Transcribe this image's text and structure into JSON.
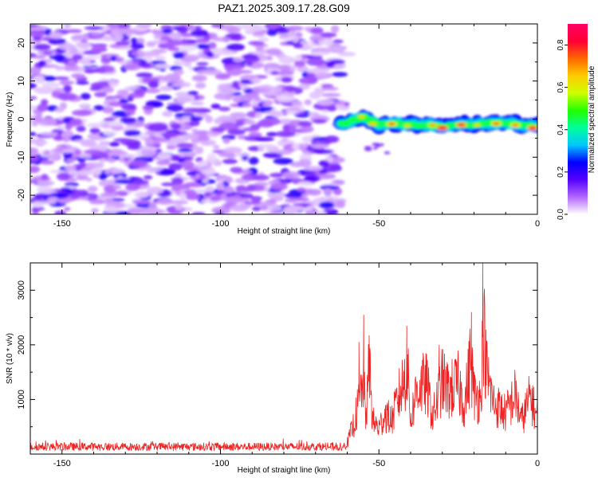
{
  "figure_title": "PAZ1.2025.309.17.28.G09",
  "chart_data": [
    {
      "type": "heatmap",
      "title": "PAZ1.2025.309.17.28.G09",
      "xlabel": "Height of straight line (km)",
      "ylabel": "Frequency (Hz)",
      "xlim": [
        -160,
        0
      ],
      "ylim": [
        -25,
        25
      ],
      "xticks": [
        -150,
        -100,
        -50,
        0
      ],
      "yticks": [
        -20,
        -10,
        0,
        10,
        20
      ],
      "colorbar": {
        "label": "Normalized spectral amplitude",
        "range": [
          0,
          0.9
        ],
        "ticks": [
          "0.0",
          "0.2",
          "0.4",
          "0.6",
          "0.8"
        ],
        "colormap": [
          "#ffffff",
          "#b366ff",
          "#5500ff",
          "#0000ff",
          "#00c8ff",
          "#00ff99",
          "#22ff00",
          "#ccff00",
          "#ffcc00",
          "#ff6600",
          "#ff0033",
          "#ff0066"
        ]
      },
      "noise_region_km": [
        -160,
        -62
      ],
      "signal_track": {
        "x": [
          -62,
          -55,
          -50,
          -45,
          -40,
          -35,
          -30,
          -25,
          -20,
          -15,
          -10,
          -5,
          0
        ],
        "freq_hz": [
          -1.5,
          0.5,
          -1.5,
          -1.0,
          -1.5,
          -1.5,
          -2.0,
          -1.5,
          -1.5,
          -1.0,
          -1.0,
          -1.5,
          -2.0
        ]
      }
    },
    {
      "type": "line",
      "xlabel": "Height of straight line (km)",
      "ylabel": "SNR (10 * v/v)",
      "xlim": [
        -160,
        0
      ],
      "ylim": [
        0,
        3500
      ],
      "xticks": [
        -150,
        -100,
        -50,
        0
      ],
      "yticks": [
        1000,
        2000,
        3000
      ],
      "line_color": "#ee2222",
      "envelope": {
        "x": [
          -160,
          -62,
          -60,
          -58,
          -56,
          -55,
          -54,
          -53,
          -52,
          -50,
          -48,
          -46,
          -44,
          -42,
          -41,
          -40,
          -38,
          -35,
          -33,
          -30,
          -28,
          -25,
          -23,
          -21,
          -20,
          -18,
          -17,
          -16,
          -14,
          -10,
          -7,
          -5,
          -2,
          -1,
          0
        ],
        "y": [
          150,
          150,
          300,
          800,
          1500,
          2000,
          1000,
          2550,
          900,
          700,
          1100,
          900,
          1500,
          2000,
          2350,
          900,
          1800,
          1900,
          1000,
          2000,
          1700,
          1900,
          1300,
          2600,
          1600,
          1500,
          3500,
          2200,
          1400,
          1100,
          1600,
          900,
          1600,
          1200,
          1000
        ]
      }
    }
  ]
}
